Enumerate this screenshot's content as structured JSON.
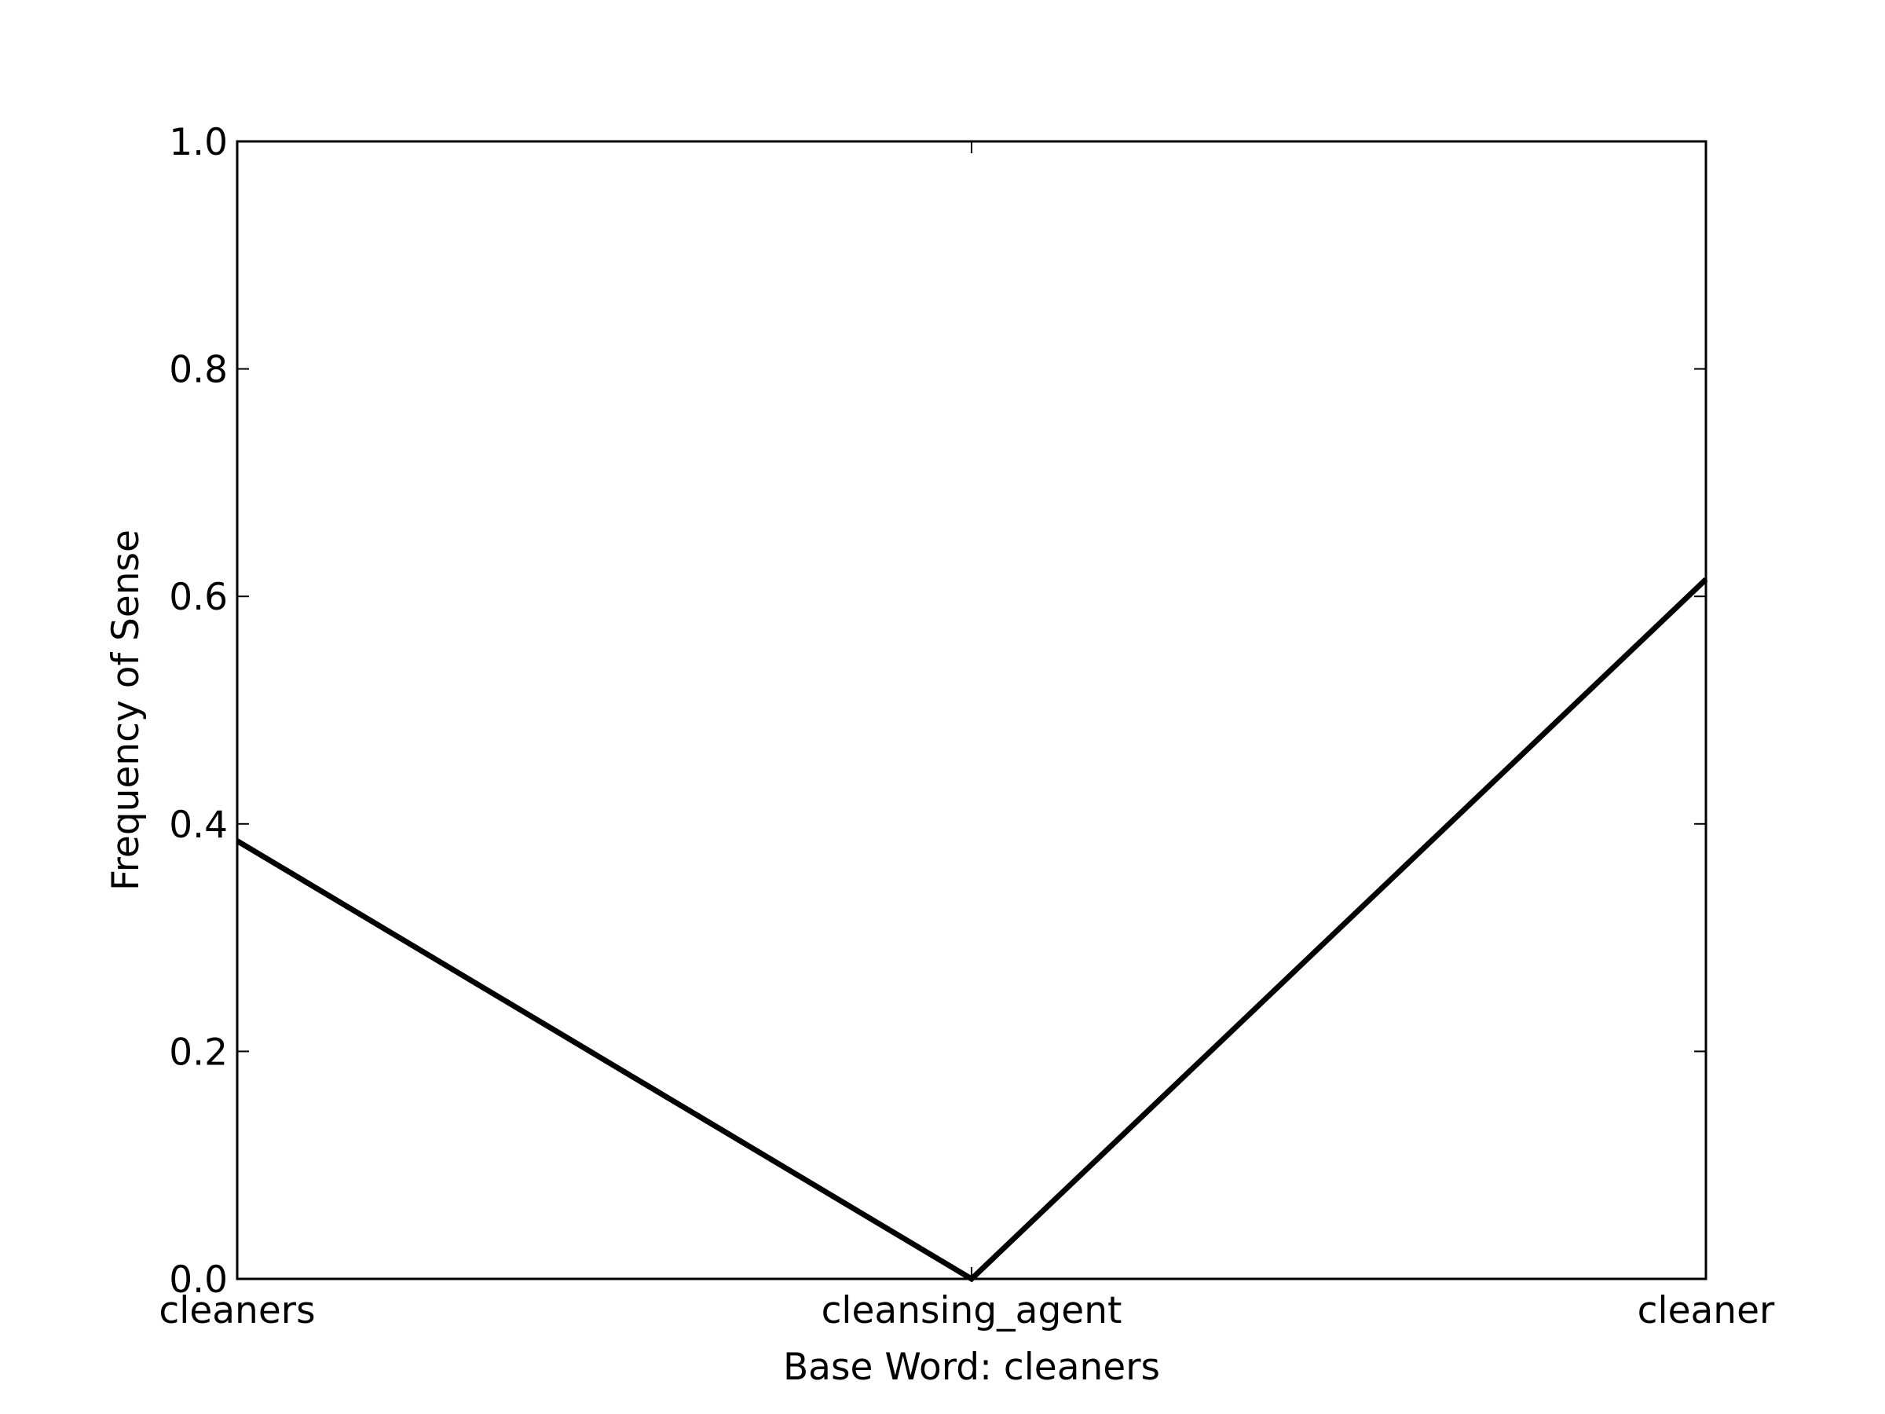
{
  "chart_data": {
    "type": "line",
    "title": "",
    "xlabel": "Base Word: cleaners",
    "ylabel": "Frequency of Sense",
    "categories": [
      "cleaners",
      "cleansing_agent",
      "cleaner"
    ],
    "series": [
      {
        "values": [
          0.385,
          0.0,
          0.615
        ],
        "color": "#000000"
      }
    ],
    "ylim": [
      0,
      1
    ],
    "yticks": [
      "0.0",
      "0.2",
      "0.4",
      "0.6",
      "0.8",
      "1.0"
    ],
    "grid": false,
    "legend": "none"
  }
}
